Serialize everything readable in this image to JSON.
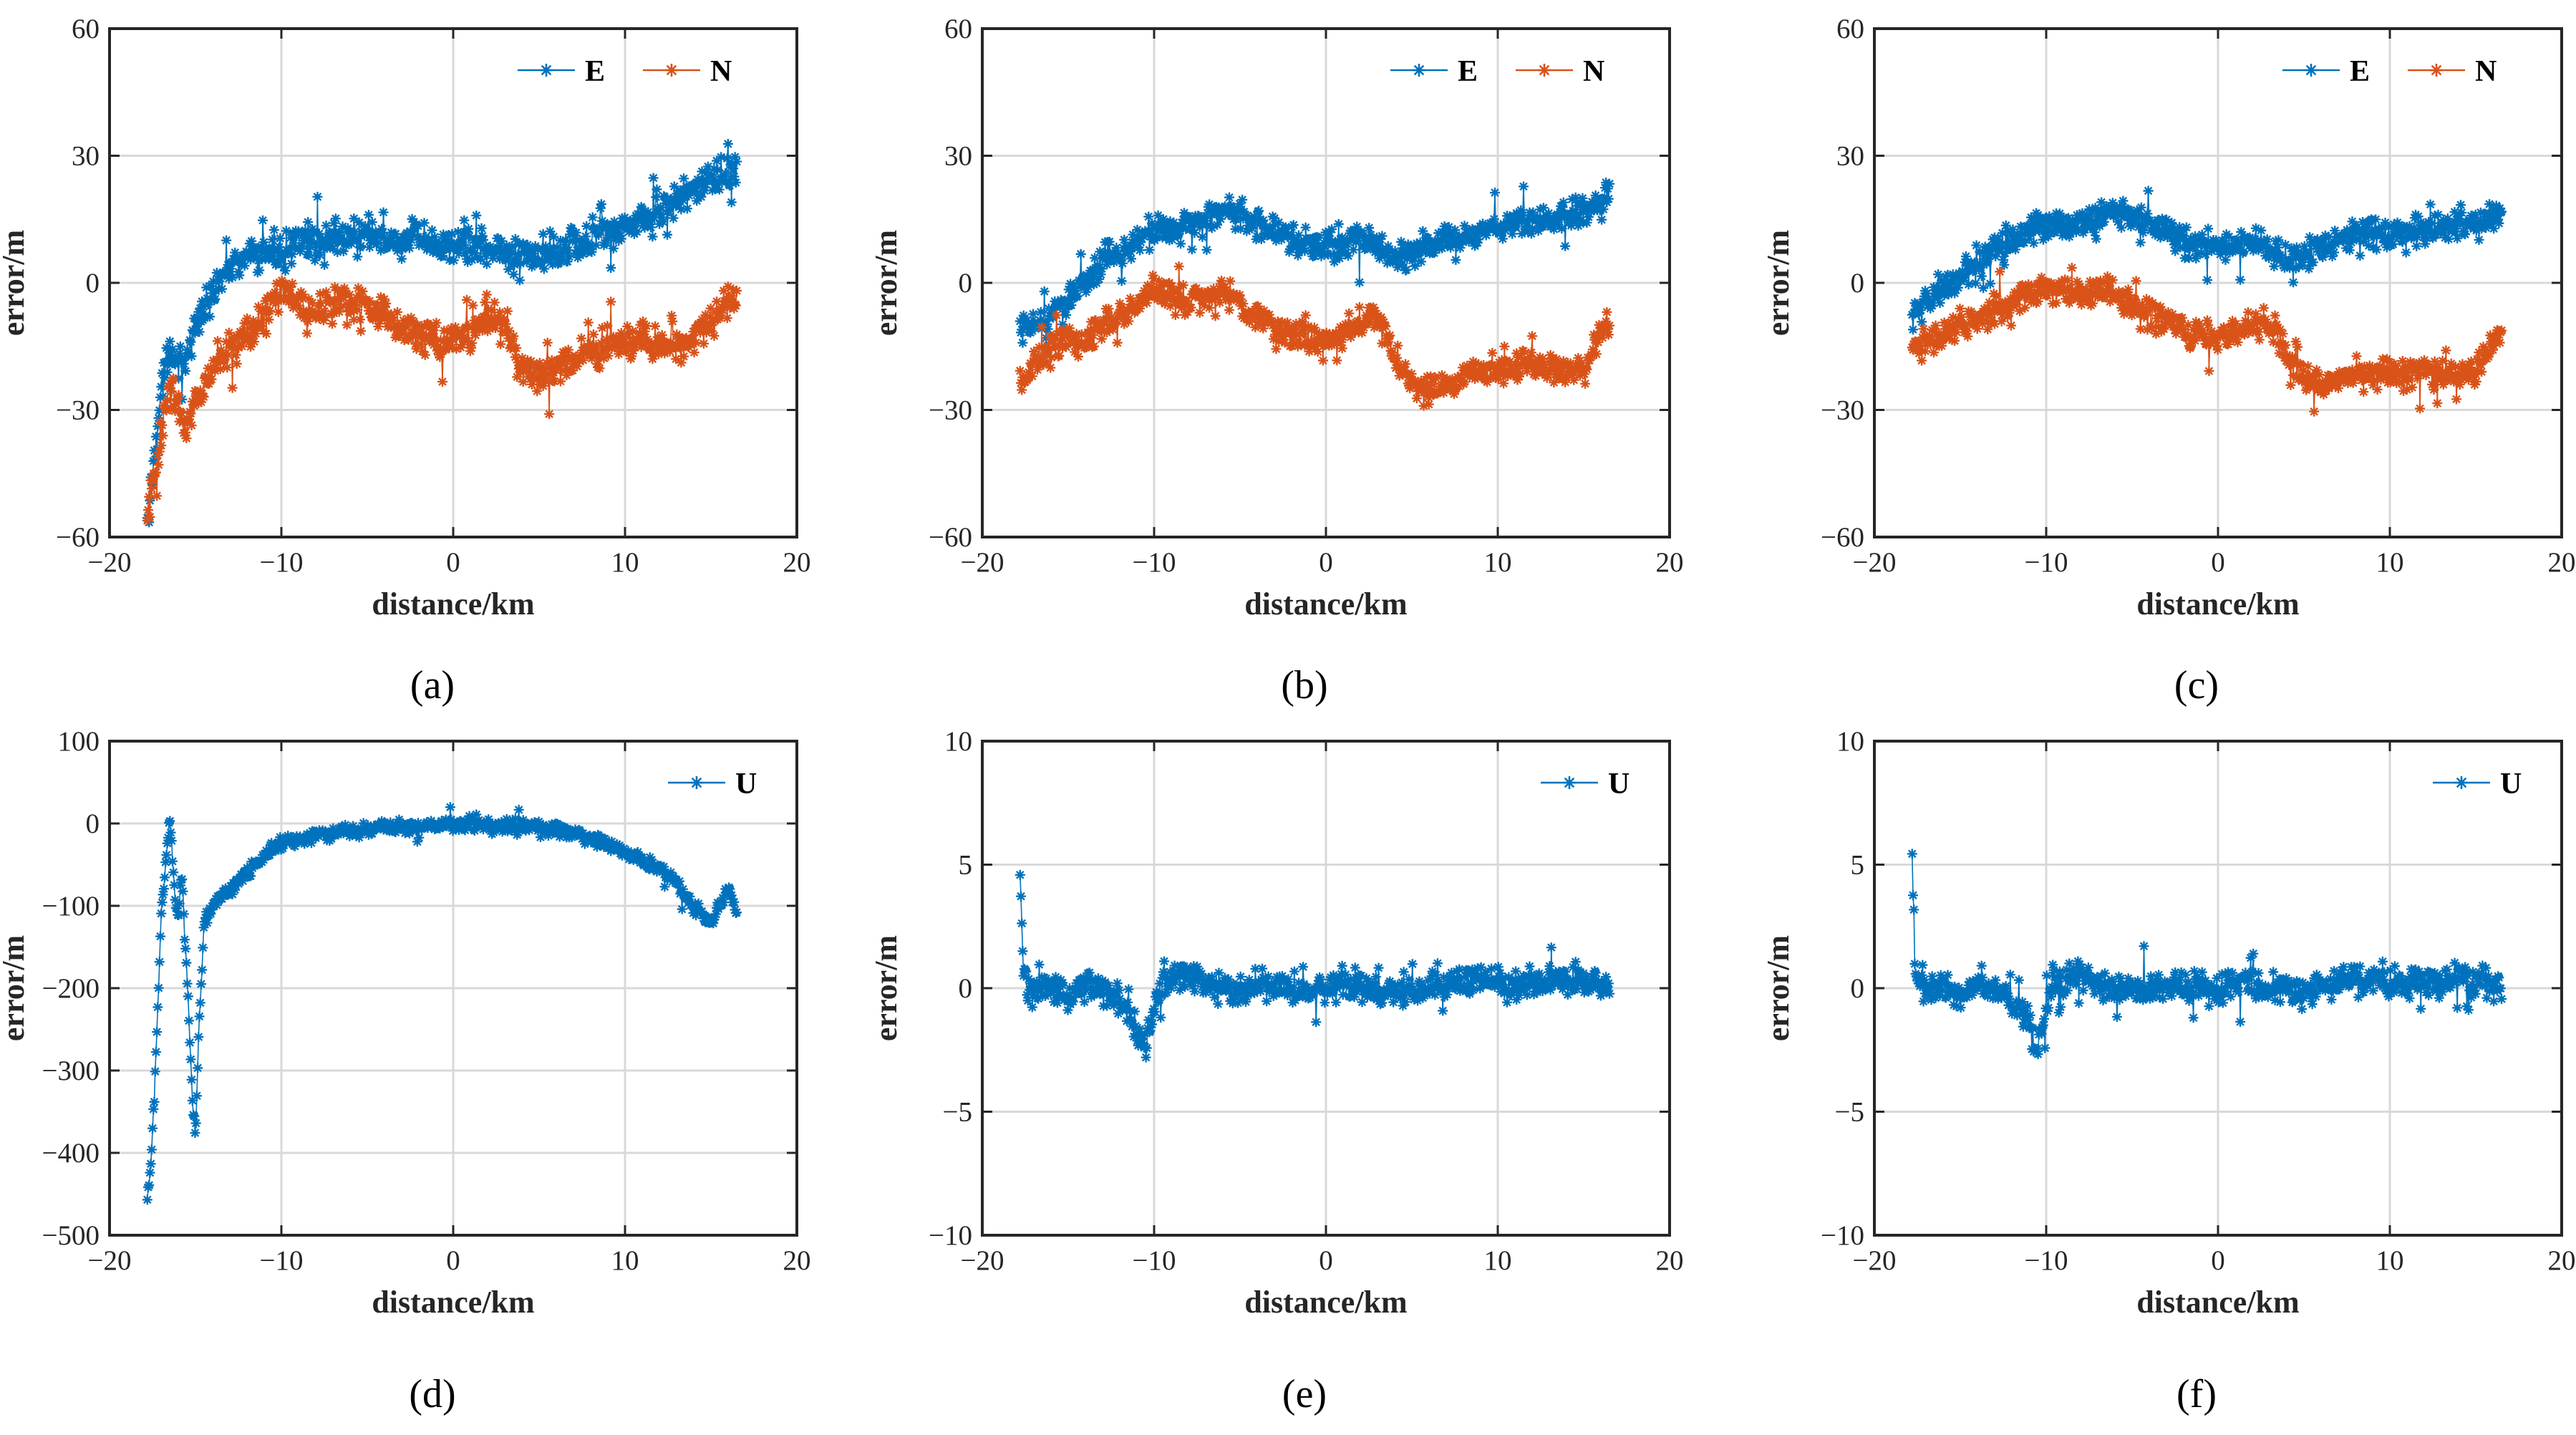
{
  "colors": {
    "E": "#0072BD",
    "N": "#D95319",
    "U": "#0072BD",
    "grid": "#d9d9d9",
    "axis": "#262626"
  },
  "chart_data": [
    {
      "id": "a",
      "type": "scatter",
      "caption": "(a)",
      "xlabel": "distance/km",
      "ylabel": "error/m",
      "xlim": [
        -20,
        20
      ],
      "ylim": [
        -60,
        60
      ],
      "xticks": [
        -20,
        -10,
        0,
        10,
        20
      ],
      "yticks": [
        -60,
        -30,
        0,
        30,
        60
      ],
      "xtick_labels": [
        "−20",
        "−10",
        "0",
        "10",
        "20"
      ],
      "ytick_labels": [
        "−60",
        "−30",
        "0",
        "30",
        "60"
      ],
      "grid": true,
      "legend_position": "top-right",
      "series": [
        {
          "name": "E",
          "color_key": "E",
          "noise": 6,
          "x": [
            -17.8,
            -17.5,
            -17,
            -16.5,
            -16,
            -15.5,
            -15,
            -14,
            -13,
            -12,
            -11,
            -10,
            -9,
            -8,
            -7,
            -6,
            -5,
            -4,
            -3,
            -2,
            -1,
            0,
            1,
            2,
            3,
            4,
            5,
            6,
            7,
            8,
            9,
            10,
            11,
            12,
            13,
            14,
            15,
            16,
            16.5
          ],
          "y": [
            -58,
            -45,
            -25,
            -15,
            -18,
            -20,
            -10,
            -2,
            4,
            6,
            7,
            8,
            9,
            10,
            10,
            11,
            11,
            10,
            10,
            10,
            9,
            9,
            9,
            8,
            7,
            6,
            7,
            8,
            9,
            10,
            12,
            13,
            15,
            17,
            20,
            22,
            24,
            26,
            27
          ]
        },
        {
          "name": "N",
          "color_key": "N",
          "noise": 6,
          "x": [
            -17.8,
            -17.5,
            -17,
            -16.5,
            -16,
            -15.5,
            -15,
            -14,
            -13,
            -12,
            -11,
            -10,
            -9,
            -8,
            -7,
            -6,
            -5,
            -4,
            -3,
            -2,
            -1,
            0,
            1,
            2,
            3,
            4,
            5,
            6,
            7,
            8,
            9,
            10,
            11,
            12,
            13,
            14,
            15,
            16,
            16.5
          ],
          "y": [
            -55,
            -48,
            -35,
            -25,
            -30,
            -35,
            -28,
            -20,
            -15,
            -12,
            -8,
            -2,
            -5,
            -8,
            -5,
            -4,
            -6,
            -8,
            -10,
            -12,
            -14,
            -13,
            -12,
            -8,
            -10,
            -20,
            -22,
            -20,
            -18,
            -16,
            -15,
            -14,
            -13,
            -15,
            -16,
            -12,
            -10,
            -5,
            -4
          ]
        }
      ]
    },
    {
      "id": "b",
      "type": "scatter",
      "caption": "(b)",
      "xlabel": "distance/km",
      "ylabel": "error/m",
      "xlim": [
        -20,
        20
      ],
      "ylim": [
        -60,
        60
      ],
      "xticks": [
        -20,
        -10,
        0,
        10,
        20
      ],
      "yticks": [
        -60,
        -30,
        0,
        30,
        60
      ],
      "xtick_labels": [
        "−20",
        "−10",
        "0",
        "10",
        "20"
      ],
      "ytick_labels": [
        "−60",
        "−30",
        "0",
        "30",
        "60"
      ],
      "grid": true,
      "legend_position": "top-right",
      "series": [
        {
          "name": "E",
          "color_key": "E",
          "noise": 5,
          "x": [
            -17.8,
            -17,
            -16,
            -15,
            -14,
            -13,
            -12,
            -11,
            -10,
            -9,
            -8,
            -7,
            -6,
            -5,
            -4,
            -3,
            -2,
            -1,
            0,
            1,
            2,
            3,
            4,
            5,
            6,
            7,
            8,
            9,
            10,
            11,
            12,
            13,
            14,
            15,
            16,
            16.5
          ],
          "y": [
            -12,
            -10,
            -8,
            -4,
            0,
            5,
            8,
            10,
            12,
            13,
            14,
            15,
            17,
            16,
            14,
            12,
            10,
            9,
            8,
            9,
            10,
            8,
            5,
            7,
            9,
            10,
            11,
            12,
            13,
            14,
            14,
            15,
            16,
            17,
            19,
            21
          ]
        },
        {
          "name": "N",
          "color_key": "N",
          "noise": 5,
          "x": [
            -17.8,
            -17,
            -16,
            -15,
            -14,
            -13,
            -12,
            -11,
            -10,
            -9,
            -8,
            -7,
            -6,
            -5,
            -4,
            -3,
            -2,
            -1,
            0,
            1,
            2,
            3,
            4,
            5,
            6,
            7,
            8,
            9,
            10,
            11,
            12,
            13,
            14,
            15,
            16,
            16.5
          ],
          "y": [
            -24,
            -20,
            -15,
            -12,
            -14,
            -10,
            -8,
            -5,
            -1,
            -3,
            -5,
            -3,
            -2,
            -5,
            -8,
            -10,
            -12,
            -14,
            -14,
            -12,
            -10,
            -8,
            -18,
            -24,
            -26,
            -24,
            -22,
            -21,
            -20,
            -20,
            -19,
            -20,
            -21,
            -20,
            -12,
            -10
          ]
        }
      ]
    },
    {
      "id": "c",
      "type": "scatter",
      "caption": "(c)",
      "xlabel": "distance/km",
      "ylabel": "error/m",
      "xlim": [
        -20,
        20
      ],
      "ylim": [
        -60,
        60
      ],
      "xticks": [
        -20,
        -10,
        0,
        10,
        20
      ],
      "yticks": [
        -60,
        -30,
        0,
        30,
        60
      ],
      "xtick_labels": [
        "−20",
        "−10",
        "0",
        "10",
        "20"
      ],
      "ytick_labels": [
        "−60",
        "−30",
        "0",
        "30",
        "60"
      ],
      "grid": true,
      "legend_position": "top-right",
      "series": [
        {
          "name": "E",
          "color_key": "E",
          "noise": 5,
          "x": [
            -17.8,
            -17,
            -16,
            -15,
            -14,
            -13,
            -12,
            -11,
            -10,
            -9,
            -8,
            -7,
            -6,
            -5,
            -4,
            -3,
            -2,
            -1,
            0,
            1,
            2,
            3,
            4,
            5,
            6,
            7,
            8,
            9,
            10,
            11,
            12,
            13,
            14,
            15,
            16,
            16.5
          ],
          "y": [
            -8,
            -5,
            -2,
            2,
            5,
            8,
            10,
            12,
            14,
            14,
            14,
            15,
            17,
            16,
            14,
            12,
            10,
            9,
            8,
            9,
            10,
            8,
            5,
            7,
            9,
            10,
            11,
            12,
            11,
            12,
            12,
            13,
            14,
            14,
            15,
            16
          ]
        },
        {
          "name": "N",
          "color_key": "N",
          "noise": 5,
          "x": [
            -17.8,
            -17,
            -16,
            -15,
            -14,
            -13,
            -12,
            -11,
            -10,
            -9,
            -8,
            -7,
            -6,
            -5,
            -4,
            -3,
            -2,
            -1,
            0,
            1,
            2,
            3,
            4,
            5,
            6,
            7,
            8,
            9,
            10,
            11,
            12,
            13,
            14,
            15,
            16,
            16.5
          ],
          "y": [
            -16,
            -14,
            -12,
            -10,
            -8,
            -6,
            -5,
            -3,
            -1,
            -2,
            -3,
            -2,
            -2,
            -5,
            -7,
            -9,
            -11,
            -13,
            -13,
            -12,
            -10,
            -9,
            -18,
            -23,
            -24,
            -23,
            -22,
            -21,
            -21,
            -21,
            -20,
            -21,
            -22,
            -21,
            -14,
            -12
          ]
        }
      ]
    },
    {
      "id": "d",
      "type": "scatter",
      "caption": "(d)",
      "xlabel": "distance/km",
      "ylabel": "error/m",
      "xlim": [
        -20,
        20
      ],
      "ylim": [
        -500,
        100
      ],
      "xticks": [
        -20,
        -10,
        0,
        10,
        20
      ],
      "yticks": [
        -500,
        -400,
        -300,
        -200,
        -100,
        0,
        100
      ],
      "xtick_labels": [
        "−20",
        "−10",
        "0",
        "10",
        "20"
      ],
      "ytick_labels": [
        "−500",
        "−400",
        "−300",
        "−200",
        "−100",
        "0",
        "100"
      ],
      "grid": true,
      "legend_position": "top-right",
      "series": [
        {
          "name": "U",
          "color_key": "U",
          "noise": 12,
          "x": [
            -17.8,
            -17.6,
            -17.4,
            -17.2,
            -17,
            -16.8,
            -16.5,
            -16.2,
            -16,
            -15.8,
            -15.5,
            -15.2,
            -15,
            -14.8,
            -14.5,
            -14,
            -13,
            -12,
            -11,
            -10,
            -9,
            -8,
            -7,
            -6,
            -5,
            -4,
            -3,
            -2,
            -1,
            0,
            1,
            2,
            3,
            4,
            5,
            6,
            7,
            8,
            9,
            10,
            11,
            12,
            13,
            13.5,
            14,
            14.5,
            15,
            15.5,
            16,
            16.5
          ],
          "y": [
            -460,
            -420,
            -330,
            -230,
            -110,
            -70,
            10,
            -90,
            -110,
            -60,
            -180,
            -320,
            -380,
            -250,
            -120,
            -100,
            -80,
            -60,
            -40,
            -25,
            -20,
            -15,
            -12,
            -10,
            -8,
            -6,
            -4,
            -3,
            -2,
            -1,
            0,
            -1,
            -2,
            -3,
            -5,
            -8,
            -12,
            -18,
            -25,
            -35,
            -45,
            -55,
            -70,
            -90,
            -100,
            -110,
            -120,
            -100,
            -80,
            -110
          ]
        }
      ]
    },
    {
      "id": "e",
      "type": "scatter",
      "caption": "(e)",
      "xlabel": "distance/km",
      "ylabel": "error/m",
      "xlim": [
        -20,
        20
      ],
      "ylim": [
        -10,
        10
      ],
      "xticks": [
        -20,
        -10,
        0,
        10,
        20
      ],
      "yticks": [
        -10,
        -5,
        0,
        5,
        10
      ],
      "xtick_labels": [
        "−20",
        "−10",
        "0",
        "10",
        "20"
      ],
      "ytick_labels": [
        "−10",
        "−5",
        "0",
        "5",
        "10"
      ],
      "grid": true,
      "legend_position": "top-right",
      "series": [
        {
          "name": "U",
          "color_key": "U",
          "noise": 0.9,
          "x": [
            -17.8,
            -17.6,
            -17.4,
            -17,
            -16,
            -15,
            -14,
            -13,
            -12,
            -11,
            -10.5,
            -10,
            -9.5,
            -9,
            -8,
            -7,
            -6,
            -5,
            -4,
            -3,
            -2,
            -1,
            0,
            1,
            2,
            3,
            4,
            5,
            6,
            7,
            8,
            9,
            10,
            11,
            12,
            13,
            14,
            15,
            16,
            16.5
          ],
          "y": [
            4.8,
            0.5,
            0,
            0,
            0,
            -0.3,
            0.2,
            0,
            -0.5,
            -1.5,
            -2.5,
            -0.8,
            0.5,
            0.3,
            0.6,
            0.2,
            0,
            0,
            0,
            0.1,
            0,
            0,
            0,
            0.2,
            0.1,
            0,
            0,
            -0.2,
            0,
            0.3,
            0.4,
            0.4,
            0.2,
            0.1,
            0.3,
            0.2,
            0.4,
            0.3,
            0.2,
            0
          ]
        }
      ]
    },
    {
      "id": "f",
      "type": "scatter",
      "caption": "(f)",
      "xlabel": "distance/km",
      "ylabel": "error/m",
      "xlim": [
        -20,
        20
      ],
      "ylim": [
        -10,
        10
      ],
      "xticks": [
        -20,
        -10,
        0,
        10,
        20
      ],
      "yticks": [
        -10,
        -5,
        0,
        5,
        10
      ],
      "xtick_labels": [
        "−20",
        "−10",
        "0",
        "10",
        "20"
      ],
      "ytick_labels": [
        "−10",
        "−5",
        "0",
        "5",
        "10"
      ],
      "grid": true,
      "legend_position": "top-right",
      "series": [
        {
          "name": "U",
          "color_key": "U",
          "noise": 0.9,
          "x": [
            -17.8,
            -17.6,
            -17.4,
            -17,
            -16,
            -15,
            -14,
            -13,
            -12,
            -11,
            -10.5,
            -10,
            -9.5,
            -9,
            -8,
            -7,
            -6,
            -5,
            -4,
            -3,
            -2,
            -1,
            0,
            1,
            2,
            3,
            4,
            5,
            6,
            7,
            8,
            9,
            10,
            11,
            12,
            13,
            14,
            15,
            16,
            16.5
          ],
          "y": [
            4.9,
            0.4,
            0,
            0,
            0,
            -0.3,
            0.2,
            0,
            -0.5,
            -1.5,
            -2.6,
            -0.8,
            0.5,
            0.3,
            0.6,
            0.2,
            0,
            0,
            0,
            0.1,
            0,
            0,
            0,
            0.2,
            0.1,
            0,
            0,
            -0.2,
            0,
            0.3,
            0.4,
            0.4,
            0.2,
            0.1,
            0.3,
            0.2,
            0.4,
            0.3,
            0.2,
            0
          ]
        }
      ]
    }
  ]
}
